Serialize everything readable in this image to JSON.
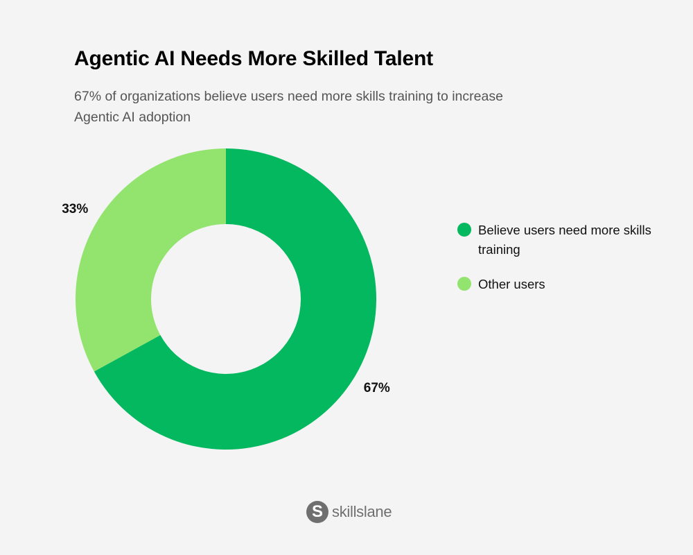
{
  "header": {
    "title": "Agentic AI Needs More Skilled Talent",
    "subtitle": "67% of organizations believe users need more skills training to increase Agentic AI adoption"
  },
  "chart_data": {
    "type": "pie",
    "style": "donut",
    "title": "Agentic AI Needs More Skilled Talent",
    "subtitle": "67% of organizations believe users need more skills training to increase Agentic AI adoption",
    "legend_position": "right",
    "slices": [
      {
        "label": "Believe users need more skills training",
        "value": 67,
        "display": "67%",
        "color": "#03b85f"
      },
      {
        "label": "Other users",
        "value": 33,
        "display": "33%",
        "color": "#92e46e"
      }
    ]
  },
  "brand": {
    "name": "skillslane",
    "logo_letter": "S"
  }
}
